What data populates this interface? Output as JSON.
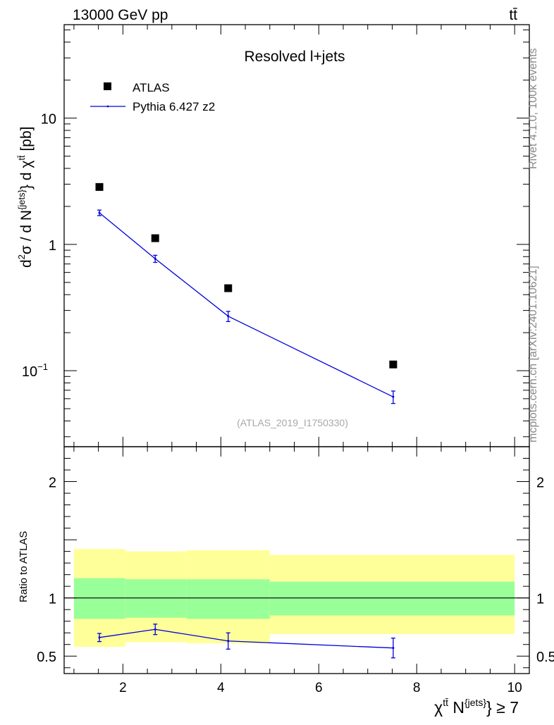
{
  "header": {
    "energy_label": "13000 GeV pp",
    "process_label": "tt̄"
  },
  "side_labels": {
    "rivet": "Rivet 4.1.0,  100k events",
    "mcplots": "mcplots.cern.ch [arXiv:2401.10621]"
  },
  "chart_data": [
    {
      "type": "scatter",
      "panel": "main",
      "title": "Resolved l+jets",
      "watermark": "(ATLAS_2019_I1750330)",
      "xlabel": "χtt̄ N{jets} ≥ 7",
      "ylabel": "d²σ / d N{jets} d χtt̄ [pb]",
      "y_scale": "log",
      "xlim": [
        0.8,
        10.3
      ],
      "ylim": [
        0.025,
        55
      ],
      "y_tick_labels": [
        "10⁻¹",
        "1",
        "10"
      ],
      "legend": {
        "placement": "top-left",
        "entries": [
          "ATLAS",
          "Pythia 6.427 z2"
        ]
      },
      "series": [
        {
          "name": "ATLAS",
          "style": "markers",
          "color": "#000000",
          "x": [
            1.52,
            2.66,
            4.15,
            7.52
          ],
          "y": [
            2.85,
            1.12,
            0.45,
            0.112
          ]
        },
        {
          "name": "Pythia 6.427 z2",
          "style": "line-errorbars",
          "color": "#0000dd",
          "x": [
            1.52,
            2.66,
            4.15,
            7.52
          ],
          "y": [
            1.78,
            0.77,
            0.27,
            0.062
          ],
          "y_err": [
            0.09,
            0.05,
            0.025,
            0.007
          ]
        }
      ]
    },
    {
      "type": "line",
      "panel": "ratio",
      "ylabel": "Ratio to ATLAS",
      "xlim": [
        0.8,
        10.3
      ],
      "ylim": [
        0.35,
        2.3
      ],
      "x_tick_labels": [
        "2",
        "4",
        "6",
        "8",
        "10"
      ],
      "y_tick_labels": [
        "0.5",
        "1",
        "2"
      ],
      "reference_line": 1.0,
      "bands": {
        "bins": [
          [
            1.0,
            2.05
          ],
          [
            2.05,
            3.3
          ],
          [
            3.3,
            5.0
          ],
          [
            5.0,
            10.0
          ]
        ],
        "inner_color": "#99ff99",
        "outer_color": "#ffff99",
        "inner": [
          [
            0.82,
            1.17
          ],
          [
            0.83,
            1.16
          ],
          [
            0.82,
            1.16
          ],
          [
            0.85,
            1.14
          ]
        ],
        "outer": [
          [
            0.58,
            1.42
          ],
          [
            0.62,
            1.4
          ],
          [
            0.61,
            1.41
          ],
          [
            0.69,
            1.37
          ]
        ]
      },
      "series": [
        {
          "name": "Pythia 6.427 z2 / ATLAS",
          "color": "#0000dd",
          "x": [
            1.52,
            2.66,
            4.15,
            7.52
          ],
          "y": [
            0.66,
            0.73,
            0.63,
            0.57
          ],
          "y_err": [
            0.035,
            0.045,
            0.07,
            0.085
          ]
        }
      ]
    }
  ]
}
